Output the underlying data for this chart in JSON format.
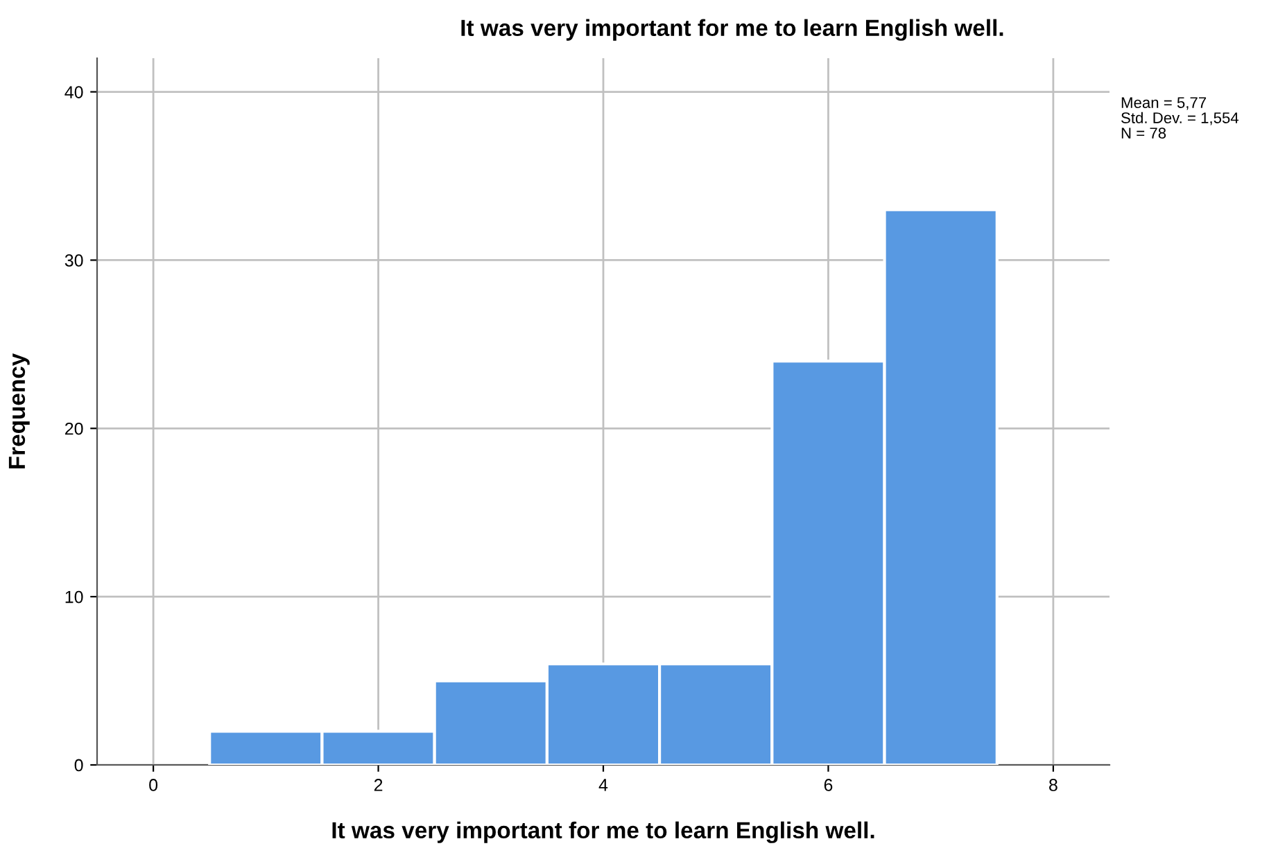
{
  "chart_data": {
    "type": "histogram",
    "title": "It was very important for me to learn English well.",
    "xlabel": "It was very important for me to learn English well.",
    "ylabel": "Frequency",
    "bins": [
      0.5,
      1.5,
      2.5,
      3.5,
      4.5,
      5.5,
      6.5,
      7.5
    ],
    "values": [
      2,
      2,
      5,
      6,
      6,
      24,
      33
    ],
    "color": "#5899e2",
    "xlim": [
      -0.5,
      8.5
    ],
    "xticks": [
      0,
      2,
      4,
      6,
      8
    ],
    "ylim": [
      0,
      42
    ],
    "yticks": [
      0,
      10,
      20,
      30,
      40
    ],
    "grid": true,
    "annotations": [
      "Mean = 5,77",
      "Std. Dev. = 1,554",
      "N = 78"
    ]
  }
}
